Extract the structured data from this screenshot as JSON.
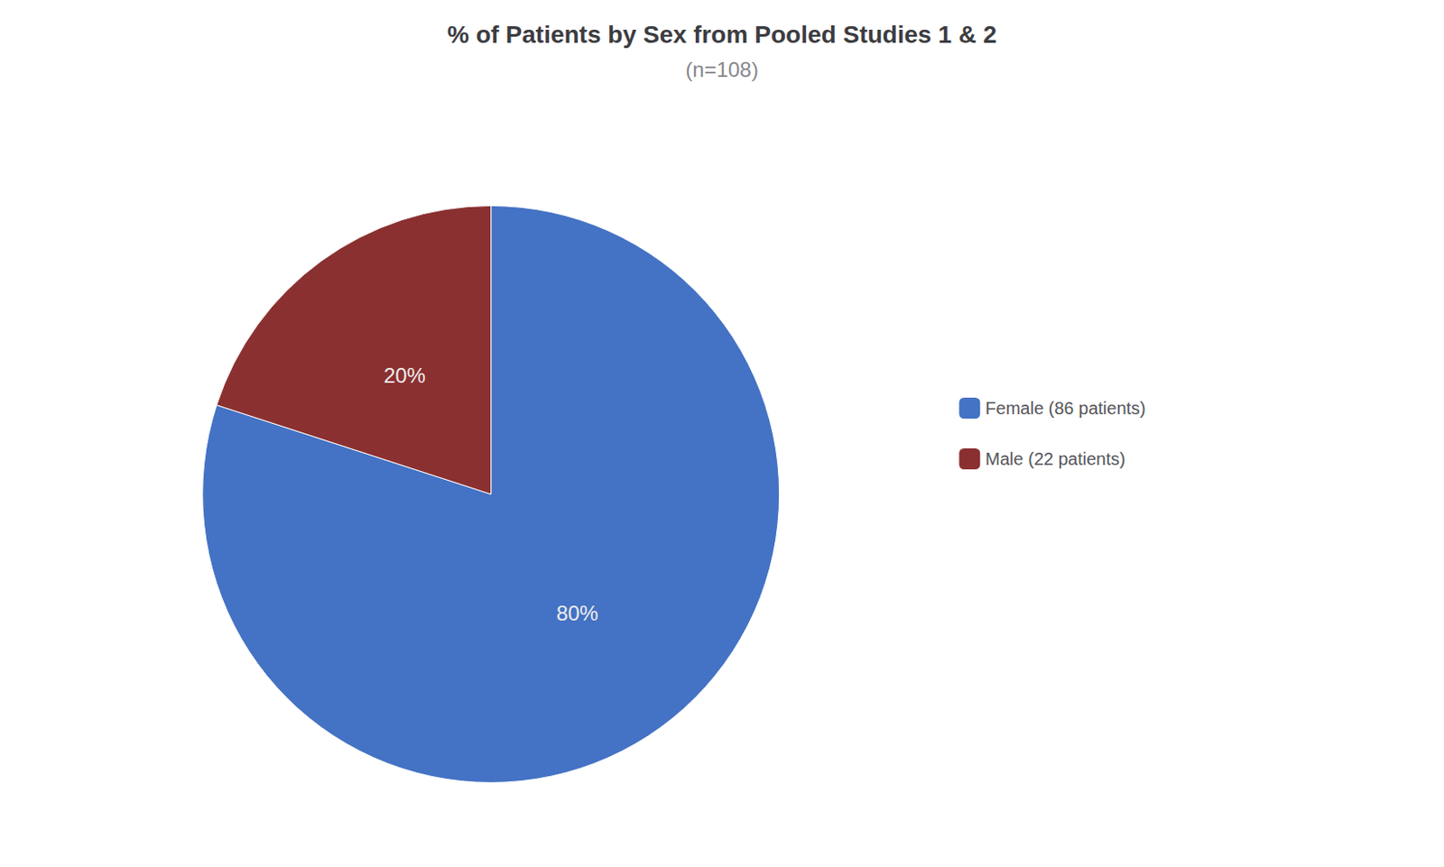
{
  "chart_data": {
    "type": "pie",
    "title": "% of Patients by Sex from Pooled Studies 1 & 2",
    "subtitle": "(n=108)",
    "categories": [
      "Female (86 patients)",
      "Male (22 patients)"
    ],
    "values": [
      80,
      20
    ],
    "value_labels": [
      "80%",
      "20%"
    ],
    "colors": [
      "#4472C4",
      "#8B3030"
    ],
    "data_labels": true,
    "legend": "right"
  }
}
